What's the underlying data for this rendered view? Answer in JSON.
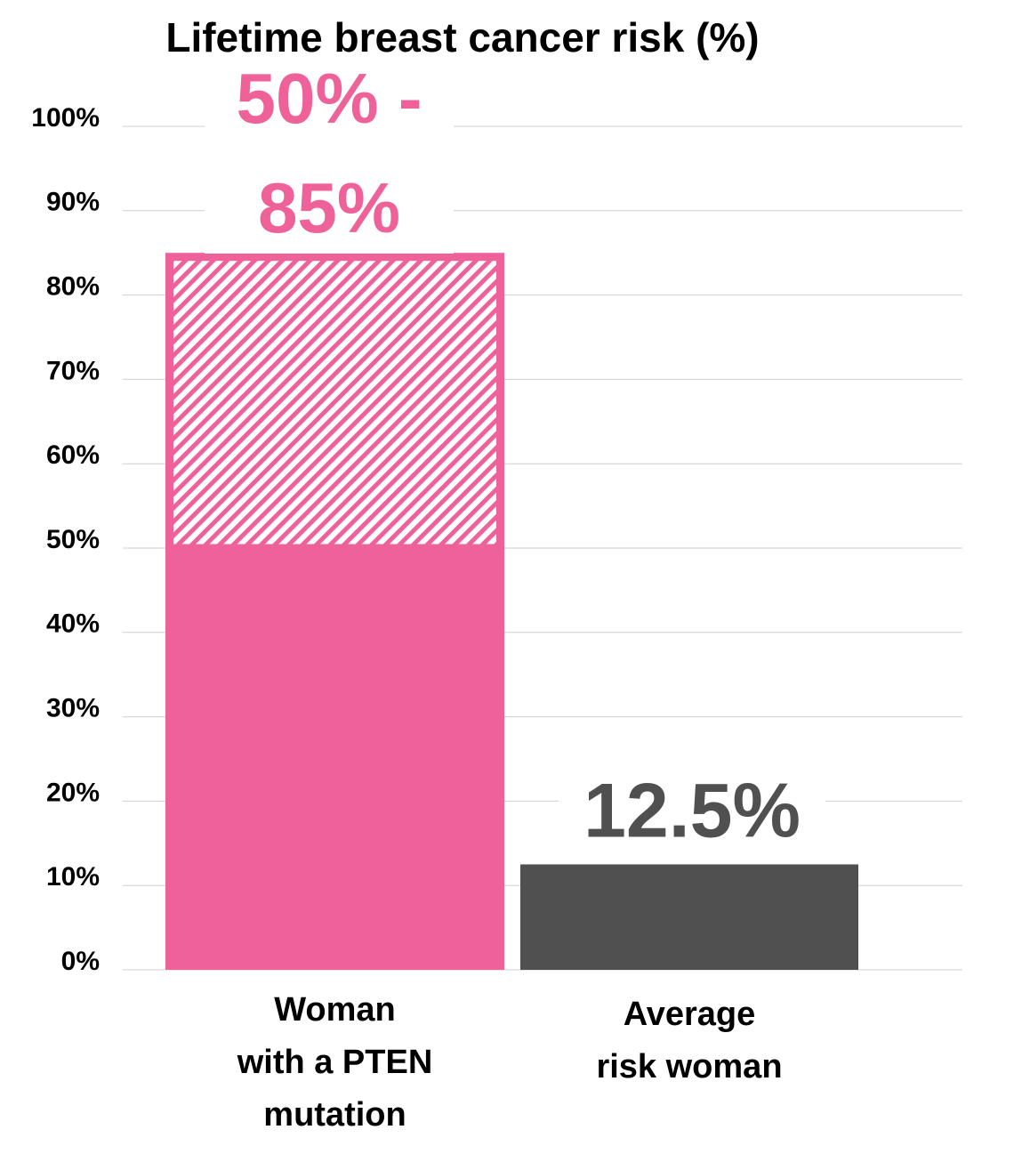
{
  "chart_data": {
    "type": "stacked_bar",
    "title": "Lifetime breast cancer risk (%)",
    "categories": [
      [
        "Woman",
        "with a PTEN",
        "mutation"
      ],
      [
        "Average",
        "risk woman"
      ]
    ],
    "series": [
      {
        "values": [
          50,
          12.5
        ],
        "colors": [
          "#ef6199",
          "#505050"
        ]
      },
      {
        "values": [
          35,
          null
        ],
        "color": "#ef6199",
        "pattern": "hatch"
      }
    ],
    "annotations": [
      {
        "lines": [
          "50% -",
          "85%"
        ],
        "color": "#ef6199"
      },
      {
        "lines": [
          "12.5%"
        ],
        "color": "#505050"
      }
    ],
    "ylim": [
      0,
      100
    ],
    "yticks": [
      {
        "value": 0,
        "label": "0%"
      },
      {
        "value": 10,
        "label": "10%"
      },
      {
        "value": 20,
        "label": "20%"
      },
      {
        "value": 30,
        "label": "30%"
      },
      {
        "value": 40,
        "label": "40%"
      },
      {
        "value": 50,
        "label": "50%"
      },
      {
        "value": 60,
        "label": "60%"
      },
      {
        "value": 70,
        "label": "70%"
      },
      {
        "value": 80,
        "label": "80%"
      },
      {
        "value": 90,
        "label": "90%"
      },
      {
        "value": 100,
        "label": "100%"
      }
    ],
    "grid": true
  }
}
